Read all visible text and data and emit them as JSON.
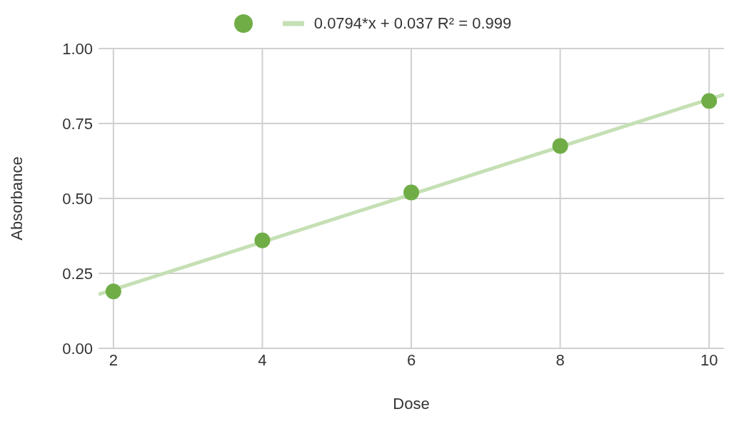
{
  "chart_data": {
    "type": "scatter",
    "xlabel": "Dose",
    "ylabel": "Absorbance",
    "xlim": [
      1.8,
      10.2
    ],
    "xticks": [
      2,
      4,
      6,
      8,
      10
    ],
    "ylim": [
      0,
      1
    ],
    "yticks": [
      {
        "value": 0,
        "label": "0.00"
      },
      {
        "value": 0.25,
        "label": "0.25"
      },
      {
        "value": 0.5,
        "label": "0.50"
      },
      {
        "value": 0.75,
        "label": "0.75"
      },
      {
        "value": 1,
        "label": "1.00"
      }
    ],
    "grid": true,
    "legend": "top",
    "series": [
      {
        "marker": "circle",
        "color": "#70ad47",
        "x": [
          2,
          4,
          6,
          8,
          10
        ],
        "values": [
          0.19,
          0.36,
          0.52,
          0.675,
          0.825
        ]
      },
      {
        "type": "line",
        "name": "0.0794*x + 0.037 R² = 0.999",
        "color": "#c5e0b4",
        "x": [
          1.8,
          10.2
        ],
        "values": [
          0.18,
          0.847
        ]
      }
    ]
  }
}
